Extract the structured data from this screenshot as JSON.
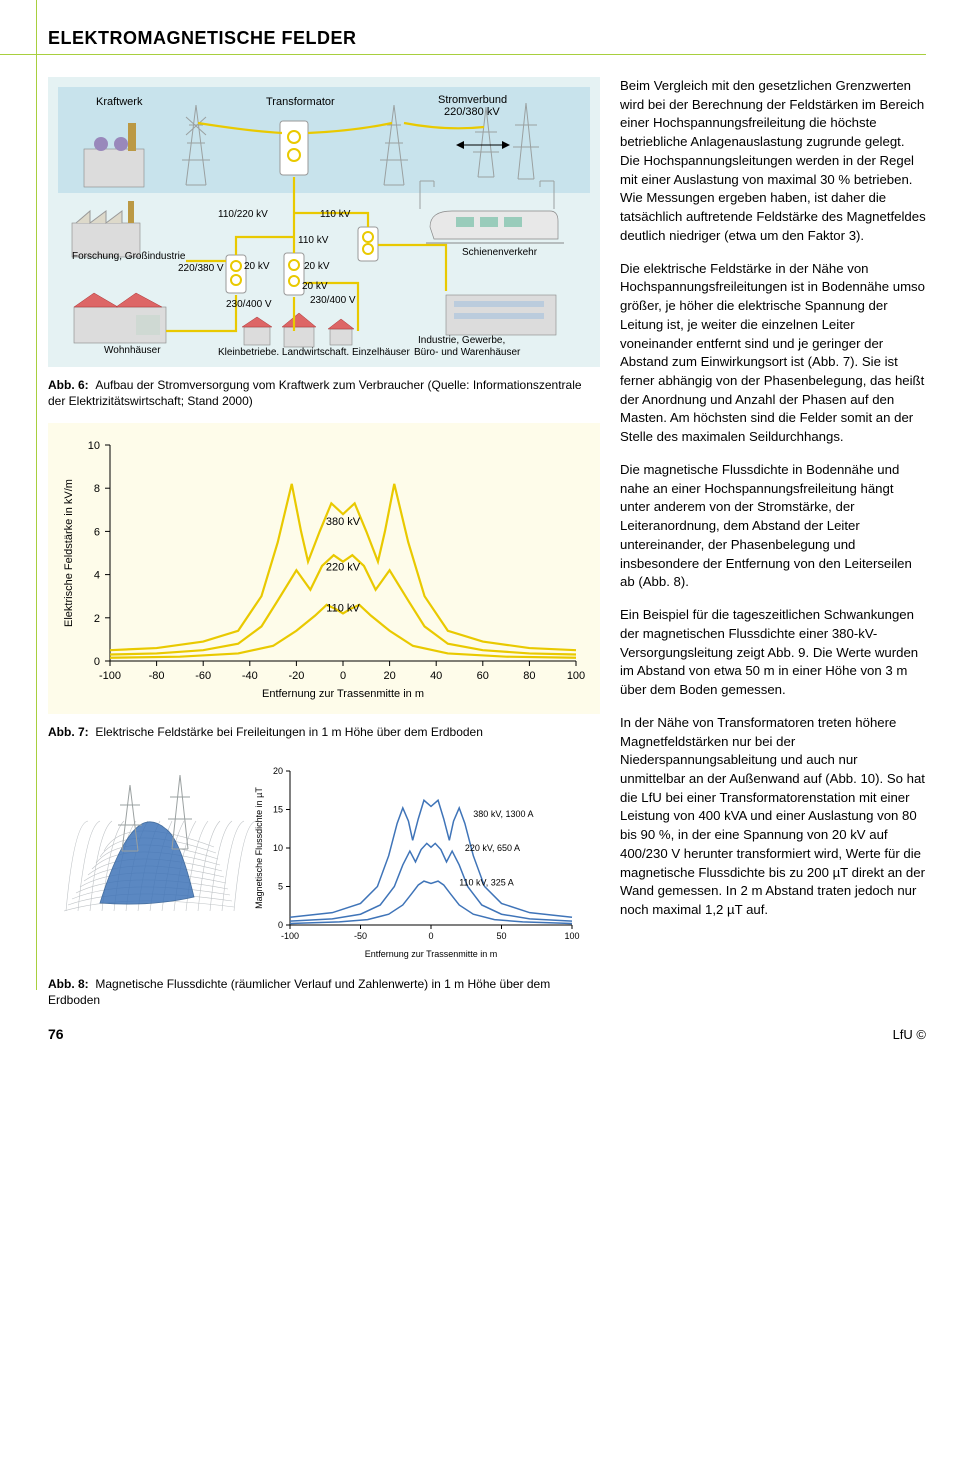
{
  "title": "ELEKTROMAGNETISCHE FELDER",
  "diagram6": {
    "labels": {
      "kraftwerk": "Kraftwerk",
      "transformator": "Transformator",
      "stromverbund": "Stromverbund\n220/380 kV",
      "forschung": "Forschung, Großindustrie",
      "schienenverkehr": "Schienenverkehr",
      "wohnhauser": "Wohnhäuser",
      "industrie": "Industrie, Gewerbe,\nBüro- und Warenhäuser",
      "kleinbetriebe": "Kleinbetriebe, Landwirtschaft, Einzelhäuser"
    },
    "voltages": {
      "top_left": "110/220 kV",
      "top_right": "110 kV",
      "mid": "110 kV",
      "v220_380": "220/380 V",
      "v20a": "20 kV",
      "v20b": "20 kV",
      "v20c": "20 kV",
      "v230a": "230/400 V",
      "v230b": "230/400 V"
    },
    "caption_label": "Abb. 6:",
    "caption": "Aufbau der Stromversorgung vom Kraftwerk zum Verbraucher (Quelle: Informationszentrale der Elektrizitätswirtschaft; Stand 2000)"
  },
  "chart7": {
    "type": "line",
    "ylabel": "Elektrische Feldstärke in kV/m",
    "xlabel": "Entfernung zur Trassenmitte in m",
    "caption_label": "Abb. 7:",
    "caption": "Elektrische Feldstärke bei Freileitungen in 1 m Höhe über dem Erdboden",
    "series": [
      {
        "label": "380 kV",
        "color": "#e9c900",
        "width": 2.2,
        "pts": [
          [
            -100,
            0.5
          ],
          [
            -80,
            0.6
          ],
          [
            -60,
            0.9
          ],
          [
            -45,
            1.4
          ],
          [
            -35,
            3.0
          ],
          [
            -28,
            5.5
          ],
          [
            -22,
            8.2
          ],
          [
            -18,
            6.0
          ],
          [
            -15,
            4.6
          ],
          [
            -10,
            6.0
          ],
          [
            -5,
            7.3
          ],
          [
            0,
            6.8
          ],
          [
            5,
            7.3
          ],
          [
            10,
            6.0
          ],
          [
            15,
            4.6
          ],
          [
            18,
            6.0
          ],
          [
            22,
            8.2
          ],
          [
            28,
            5.5
          ],
          [
            35,
            3.0
          ],
          [
            45,
            1.4
          ],
          [
            60,
            0.9
          ],
          [
            80,
            0.6
          ],
          [
            100,
            0.5
          ]
        ]
      },
      {
        "label": "220 kV",
        "color": "#e9c900",
        "width": 2.2,
        "pts": [
          [
            -100,
            0.3
          ],
          [
            -80,
            0.35
          ],
          [
            -60,
            0.5
          ],
          [
            -45,
            0.8
          ],
          [
            -35,
            1.6
          ],
          [
            -28,
            2.8
          ],
          [
            -20,
            4.2
          ],
          [
            -14,
            3.3
          ],
          [
            -9,
            4.4
          ],
          [
            -4,
            4.9
          ],
          [
            0,
            4.6
          ],
          [
            4,
            4.9
          ],
          [
            9,
            4.4
          ],
          [
            14,
            3.3
          ],
          [
            20,
            4.2
          ],
          [
            28,
            2.8
          ],
          [
            35,
            1.6
          ],
          [
            45,
            0.8
          ],
          [
            60,
            0.5
          ],
          [
            80,
            0.35
          ],
          [
            100,
            0.3
          ]
        ]
      },
      {
        "label": "110 kV",
        "color": "#e9c900",
        "width": 2.2,
        "pts": [
          [
            -100,
            0.15
          ],
          [
            -70,
            0.2
          ],
          [
            -45,
            0.35
          ],
          [
            -30,
            0.7
          ],
          [
            -20,
            1.4
          ],
          [
            -12,
            2.1
          ],
          [
            -7,
            2.6
          ],
          [
            -3,
            2.4
          ],
          [
            0,
            2.2
          ],
          [
            3,
            2.4
          ],
          [
            7,
            2.6
          ],
          [
            12,
            2.1
          ],
          [
            20,
            1.4
          ],
          [
            30,
            0.7
          ],
          [
            45,
            0.35
          ],
          [
            70,
            0.2
          ],
          [
            100,
            0.15
          ]
        ]
      }
    ],
    "series_label_pos": {
      "380 kV": [
        0,
        6.3
      ],
      "220 kV": [
        0,
        4.2
      ],
      "110 kV": [
        0,
        2.3
      ]
    },
    "xlim": [
      -100,
      100
    ],
    "xticks": [
      -100,
      -80,
      -60,
      -40,
      -20,
      0,
      20,
      40,
      60,
      80,
      100
    ],
    "ylim": [
      0,
      10
    ],
    "yticks": [
      0,
      2,
      4,
      6,
      8,
      10
    ],
    "bg": "#fefcea"
  },
  "chart8": {
    "type": "line",
    "ylabel": "Magnetische Flussdichte in µT",
    "xlabel": "Entfernung zur Trassenmitte in m",
    "caption_label": "Abb. 8:",
    "caption": "Magnetische Flussdichte (räumlicher Verlauf und Zahlenwerte) in 1 m Höhe über dem Erdboden",
    "series": [
      {
        "label": "380 kV, 1300 A",
        "color": "#3f74b8",
        "width": 1.5,
        "pts": [
          [
            -100,
            1.0
          ],
          [
            -70,
            1.6
          ],
          [
            -50,
            2.8
          ],
          [
            -38,
            5.0
          ],
          [
            -30,
            9.0
          ],
          [
            -24,
            13.2
          ],
          [
            -20,
            15.2
          ],
          [
            -16,
            13.5
          ],
          [
            -13,
            11.0
          ],
          [
            -9,
            13.8
          ],
          [
            -5,
            16.2
          ],
          [
            0,
            15.4
          ],
          [
            5,
            16.2
          ],
          [
            9,
            13.8
          ],
          [
            13,
            11.0
          ],
          [
            16,
            13.5
          ],
          [
            20,
            15.2
          ],
          [
            24,
            13.2
          ],
          [
            30,
            9.0
          ],
          [
            38,
            5.0
          ],
          [
            50,
            2.8
          ],
          [
            70,
            1.6
          ],
          [
            100,
            1.0
          ]
        ]
      },
      {
        "label": "220 kV, 650 A",
        "color": "#3f74b8",
        "width": 1.5,
        "pts": [
          [
            -100,
            0.5
          ],
          [
            -70,
            0.8
          ],
          [
            -50,
            1.4
          ],
          [
            -36,
            2.6
          ],
          [
            -26,
            5.0
          ],
          [
            -20,
            7.8
          ],
          [
            -15,
            9.6
          ],
          [
            -11,
            8.2
          ],
          [
            -7,
            9.8
          ],
          [
            -3,
            10.6
          ],
          [
            0,
            10.1
          ],
          [
            3,
            10.6
          ],
          [
            7,
            9.8
          ],
          [
            11,
            8.2
          ],
          [
            15,
            9.6
          ],
          [
            20,
            7.8
          ],
          [
            26,
            5.0
          ],
          [
            36,
            2.6
          ],
          [
            50,
            1.4
          ],
          [
            70,
            0.8
          ],
          [
            100,
            0.5
          ]
        ]
      },
      {
        "label": "110 kV, 325 A",
        "color": "#3f74b8",
        "width": 1.5,
        "pts": [
          [
            -100,
            0.2
          ],
          [
            -65,
            0.4
          ],
          [
            -45,
            0.7
          ],
          [
            -30,
            1.4
          ],
          [
            -20,
            2.6
          ],
          [
            -14,
            4.0
          ],
          [
            -9,
            5.2
          ],
          [
            -5,
            5.7
          ],
          [
            0,
            5.4
          ],
          [
            5,
            5.7
          ],
          [
            9,
            5.2
          ],
          [
            14,
            4.0
          ],
          [
            20,
            2.6
          ],
          [
            30,
            1.4
          ],
          [
            45,
            0.7
          ],
          [
            65,
            0.4
          ],
          [
            100,
            0.2
          ]
        ]
      }
    ],
    "series_label_pos": {
      "380 kV, 1300 A": [
        30,
        14
      ],
      "220 kV, 650 A": [
        24,
        9.6
      ],
      "110 kV, 325 A": [
        20,
        5.1
      ]
    },
    "xlim": [
      -100,
      100
    ],
    "xticks": [
      -100,
      -50,
      0,
      50,
      100
    ],
    "ylim": [
      0,
      20
    ],
    "yticks": [
      0,
      5,
      10,
      15,
      20
    ]
  },
  "text": {
    "p1": "Beim Vergleich mit den gesetzlichen Grenzwerten wird bei der Berechnung der Feldstärken im Bereich einer Hochspannungsfreileitung die höchste betriebliche Anlagenauslastung zugrunde gelegt. Die Hochspannungsleitungen werden in der Regel mit einer Auslastung von maximal 30 % betrieben. Wie Messungen ergeben haben, ist daher die tatsächlich auftretende Feldstärke des Magnetfeldes deutlich niedriger (etwa um den Faktor 3).",
    "p2": "Die elektrische Feldstärke in der Nähe von Hochspannungsfreileitungen ist in Bodennähe umso größer, je höher die elektrische Spannung der Leitung ist, je weiter die einzelnen Leiter voneinander entfernt sind und je geringer der Abstand zum Einwirkungsort ist (Abb. 7). Sie ist ferner abhängig von der Phasenbelegung, das heißt der Anordnung und Anzahl der Phasen auf den Masten. Am höchsten sind die Felder somit an der Stelle des maximalen Seildurchhangs.",
    "p3": "Die magnetische Flussdichte in Bodennähe und nahe an einer Hochspannungsfreileitung hängt unter anderem von der Stromstärke, der Leiteranordnung, dem Abstand der Leiter untereinander, der Phasenbelegung und insbesondere der Entfernung von den Leiterseilen ab (Abb. 8).",
    "p4": "Ein Beispiel für die tageszeitlichen Schwankungen der magnetischen Flussdichte einer 380-kV-Versorgungsleitung zeigt Abb. 9. Die Werte wurden im Abstand von etwa 50 m in einer Höhe von 3 m über dem Boden gemessen.",
    "p5": "In der Nähe von Transformatoren treten höhere Magnetfeldstärken nur bei der Niederspannungsableitung und auch nur unmittelbar an der Außenwand auf (Abb. 10). So hat die LfU bei einer Transformatorenstation mit einer Leistung von 400 kVA und einer Auslastung von 80 bis 90 %, in der eine Spannung von 20 kV auf 400/230 V herunter transformiert wird, Werte für die magnetische Flussdichte bis zu 200 µT direkt an der Wand gemessen. In 2 m Abstand traten jedoch nur noch maximal 1,2 µT auf."
  },
  "footer": {
    "page": "76",
    "source": "LfU ©"
  }
}
